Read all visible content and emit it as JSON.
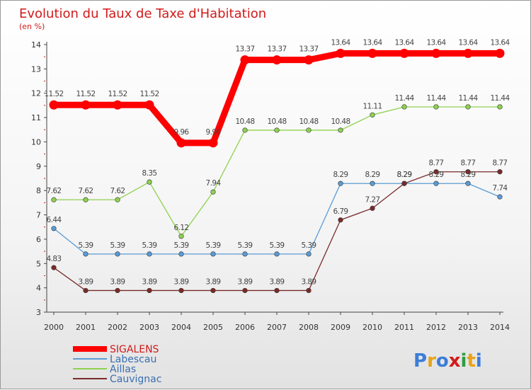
{
  "chart_data": {
    "type": "line",
    "title": "Evolution du Taux de Taxe d'Habitation",
    "subtitle": "(en %)",
    "x": [
      "2000",
      "2001",
      "2002",
      "2003",
      "2004",
      "2005",
      "2006",
      "2007",
      "2008",
      "2009",
      "2010",
      "2011",
      "2012",
      "2013",
      "2014"
    ],
    "ylim": [
      3,
      14
    ],
    "yticks": [
      3,
      4,
      5,
      6,
      7,
      8,
      9,
      10,
      11,
      12,
      13,
      14
    ],
    "grid": false,
    "legend_position": "bottom-left",
    "series": [
      {
        "name": "SIGALENS",
        "color": "#ff0000",
        "width": 9,
        "values": [
          11.52,
          11.52,
          11.52,
          11.52,
          9.96,
          9.96,
          13.37,
          13.37,
          13.37,
          13.64,
          13.64,
          13.64,
          13.64,
          13.64,
          13.64
        ],
        "labels": [
          "11.52",
          "11.52",
          "11.52",
          "11.52",
          "9.96",
          "9.96",
          "13.37",
          "13.37",
          "13.37",
          "13.64",
          "13.64",
          "13.64",
          "13.64",
          "13.64",
          "13.64"
        ]
      },
      {
        "name": "Labescau",
        "color": "#5b9bd5",
        "width": 1.3,
        "values": [
          6.44,
          5.39,
          5.39,
          5.39,
          5.39,
          5.39,
          5.39,
          5.39,
          5.39,
          8.29,
          8.29,
          8.29,
          8.29,
          8.29,
          7.74
        ],
        "labels": [
          "6.44",
          "5.39",
          "5.39",
          "5.39",
          "5.39",
          "5.39",
          "5.39",
          "5.39",
          "5.39",
          "8.29",
          "8.29",
          "8.29",
          "8.29",
          "8.29",
          "7.74"
        ]
      },
      {
        "name": "Aillas",
        "color": "#8fd14f",
        "width": 1.3,
        "values": [
          7.62,
          7.62,
          7.62,
          8.35,
          6.12,
          7.94,
          10.48,
          10.48,
          10.48,
          10.48,
          11.11,
          11.44,
          11.44,
          11.44,
          11.44
        ],
        "labels": [
          "7.62",
          "7.62",
          "7.62",
          "8.35",
          "6.12",
          "7.94",
          "10.48",
          "10.48",
          "10.48",
          "10.48",
          "11.11",
          "11.44",
          "11.44",
          "11.44",
          "11.44"
        ]
      },
      {
        "name": "Cauvignac",
        "color": "#7a2a2a",
        "width": 1.3,
        "values": [
          4.83,
          3.89,
          3.89,
          3.89,
          3.89,
          3.89,
          3.89,
          3.89,
          3.89,
          6.79,
          7.27,
          8.29,
          8.77,
          8.77,
          8.77
        ],
        "labels": [
          "4.83",
          "3.89",
          "3.89",
          "3.89",
          "3.89",
          "3.89",
          "3.89",
          "3.89",
          "3.89",
          "6.79",
          "7.27",
          "8.29",
          "8.77",
          "8.77",
          "8.77"
        ]
      }
    ]
  },
  "logo": {
    "text": "Proxiti"
  }
}
